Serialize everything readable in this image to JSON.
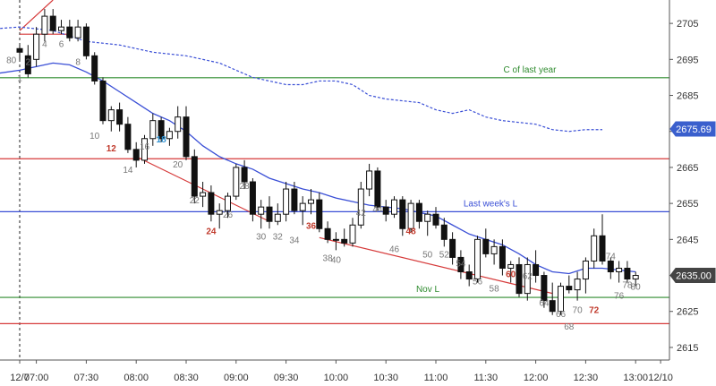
{
  "chart_data": {
    "type": "candlestick",
    "y_ticks": [
      2705,
      2695,
      2685,
      2675,
      2665,
      2655,
      2645,
      2635,
      2625,
      2615
    ],
    "ylim": [
      2611.5,
      2711.5
    ],
    "x_ticks": [
      {
        "bar": 0,
        "label": "12/7"
      },
      {
        "bar": 2,
        "label": "07:00"
      },
      {
        "bar": 8,
        "label": "07:30"
      },
      {
        "bar": 14,
        "label": "08:00"
      },
      {
        "bar": 20,
        "label": "08:30"
      },
      {
        "bar": 26,
        "label": "09:00"
      },
      {
        "bar": 32,
        "label": "09:30"
      },
      {
        "bar": 38,
        "label": "10:00"
      },
      {
        "bar": 44,
        "label": "10:30"
      },
      {
        "bar": 50,
        "label": "11:00"
      },
      {
        "bar": 56,
        "label": "11:30"
      },
      {
        "bar": 62,
        "label": "12:00"
      },
      {
        "bar": 68,
        "label": "12:30"
      },
      {
        "bar": 74,
        "label": "13:00"
      },
      {
        "bar": 77,
        "label": "12/10"
      }
    ],
    "day_separator_bar": 0,
    "price_readouts": [
      {
        "value": 2675.69,
        "text": "2675.69",
        "color": "#3a5fcd"
      },
      {
        "value": 2635.0,
        "text": "2635.00",
        "color": "#444444"
      }
    ],
    "levels": [
      {
        "value": 2689.9,
        "color": "#2e8b2e",
        "label": "C of last year"
      },
      {
        "value": 2667.4,
        "color": "#d63a3a",
        "label": ""
      },
      {
        "value": 2652.7,
        "color": "#3a4fd6",
        "label": "Last week's L"
      },
      {
        "value": 2628.9,
        "color": "#2e8b2e",
        "label": "Nov L"
      },
      {
        "value": 2621.6,
        "color": "#d63a3a",
        "label": ""
      }
    ],
    "trend_lines": [
      {
        "points": [
          [
            0,
            2703
          ],
          [
            4,
            2711.5
          ]
        ],
        "color": "#d63a3a"
      },
      {
        "points": [
          [
            0,
            2702
          ],
          [
            6,
            2702
          ]
        ],
        "color": "#d63a3a"
      },
      {
        "points": [
          [
            14,
            2668
          ],
          [
            30,
            2650
          ]
        ],
        "color": "#d63a3a"
      },
      {
        "points": [
          [
            36,
            2645.5
          ],
          [
            64,
            2630
          ]
        ],
        "color": "#d63a3a"
      }
    ],
    "candles": [
      [
        2698,
        2699,
        2695,
        2697
      ],
      [
        2696,
        2699,
        2690,
        2691
      ],
      [
        2695,
        2704,
        2693,
        2702
      ],
      [
        2702,
        2709,
        2700,
        2707
      ],
      [
        2707,
        2709,
        2702,
        2703
      ],
      [
        2703,
        2706,
        2702,
        2704
      ],
      [
        2704,
        2706,
        2700,
        2701
      ],
      [
        2701,
        2706,
        2700,
        2704
      ],
      [
        2704,
        2705,
        2695,
        2696
      ],
      [
        2696,
        2697,
        2688,
        2689
      ],
      [
        2689,
        2690,
        2677,
        2678
      ],
      [
        2678,
        2682,
        2675,
        2681
      ],
      [
        2681,
        2683,
        2675,
        2677
      ],
      [
        2677,
        2679,
        2669,
        2670
      ],
      [
        2670,
        2672,
        2665,
        2667
      ],
      [
        2667,
        2674,
        2666,
        2673
      ],
      [
        2673,
        2680,
        2671,
        2678
      ],
      [
        2678,
        2679,
        2672,
        2673
      ],
      [
        2673,
        2676,
        2671,
        2675
      ],
      [
        2675,
        2682,
        2673,
        2679
      ],
      [
        2679,
        2682,
        2667,
        2668
      ],
      [
        2668,
        2670,
        2655,
        2657
      ],
      [
        2657,
        2661,
        2654,
        2658
      ],
      [
        2658,
        2660,
        2650,
        2652
      ],
      [
        2652,
        2655,
        2648,
        2653
      ],
      [
        2653,
        2658,
        2651,
        2657
      ],
      [
        2657,
        2666,
        2656,
        2665
      ],
      [
        2665,
        2667,
        2659,
        2661
      ],
      [
        2661,
        2662,
        2650,
        2652
      ],
      [
        2652,
        2656,
        2648,
        2654
      ],
      [
        2654,
        2657,
        2648,
        2650
      ],
      [
        2650,
        2655,
        2649,
        2652
      ],
      [
        2652,
        2661,
        2650,
        2659
      ],
      [
        2659,
        2661,
        2652,
        2653
      ],
      [
        2653,
        2657,
        2649,
        2655
      ],
      [
        2655,
        2659,
        2652,
        2656
      ],
      [
        2656,
        2658,
        2647,
        2648
      ],
      [
        2648,
        2650,
        2644,
        2645
      ],
      [
        2645,
        2647,
        2642,
        2645
      ],
      [
        2645,
        2648,
        2643,
        2644
      ],
      [
        2644,
        2651,
        2643,
        2649
      ],
      [
        2649,
        2661,
        2648,
        2659
      ],
      [
        2659,
        2666,
        2657,
        2664
      ],
      [
        2664,
        2665,
        2653,
        2654
      ],
      [
        2654,
        2656,
        2650,
        2652
      ],
      [
        2652,
        2657,
        2651,
        2656
      ],
      [
        2656,
        2657,
        2646,
        2648
      ],
      [
        2648,
        2656,
        2647,
        2655
      ],
      [
        2655,
        2656,
        2648,
        2650
      ],
      [
        2650,
        2653,
        2646,
        2652
      ],
      [
        2652,
        2654,
        2648,
        2649
      ],
      [
        2649,
        2651,
        2643,
        2645
      ],
      [
        2645,
        2647,
        2638,
        2640
      ],
      [
        2640,
        2642,
        2634,
        2636
      ],
      [
        2636,
        2638,
        2632,
        2634
      ],
      [
        2634,
        2646,
        2633,
        2645
      ],
      [
        2645,
        2648,
        2640,
        2641
      ],
      [
        2641,
        2645,
        2638,
        2643
      ],
      [
        2643,
        2645,
        2635,
        2637
      ],
      [
        2637,
        2639,
        2633,
        2638
      ],
      [
        2638,
        2640,
        2629,
        2630
      ],
      [
        2630,
        2640,
        2628,
        2638
      ],
      [
        2638,
        2642,
        2633,
        2635
      ],
      [
        2635,
        2636,
        2626,
        2628
      ],
      [
        2628,
        2633,
        2624,
        2625
      ],
      [
        2625,
        2633,
        2624,
        2632
      ],
      [
        2632,
        2635,
        2630,
        2631
      ],
      [
        2631,
        2636,
        2628,
        2634
      ],
      [
        2634,
        2640,
        2630,
        2639
      ],
      [
        2639,
        2648,
        2637,
        2646
      ],
      [
        2646,
        2652,
        2638,
        2639
      ],
      [
        2639,
        2640,
        2634,
        2636
      ],
      [
        2636,
        2639,
        2633,
        2637
      ],
      [
        2637,
        2639,
        2633,
        2634
      ],
      [
        2634,
        2636,
        2632,
        2635
      ]
    ],
    "ema_color": "#3a4fd6",
    "ema_points": [
      [
        -12,
        2680
      ],
      [
        -6,
        2690
      ],
      [
        0,
        2692
      ],
      [
        2,
        2693
      ],
      [
        4,
        2694
      ],
      [
        6,
        2693.5
      ],
      [
        8,
        2691.5
      ],
      [
        10,
        2689
      ],
      [
        12,
        2686
      ],
      [
        14,
        2683
      ],
      [
        16,
        2680
      ],
      [
        18,
        2678
      ],
      [
        20,
        2675
      ],
      [
        22,
        2671
      ],
      [
        24,
        2668
      ],
      [
        26,
        2666
      ],
      [
        28,
        2664.5
      ],
      [
        30,
        2662
      ],
      [
        32,
        2660.5
      ],
      [
        34,
        2659
      ],
      [
        36,
        2658
      ],
      [
        38,
        2656.5
      ],
      [
        40,
        2655.5
      ],
      [
        42,
        2654.5
      ],
      [
        44,
        2654
      ],
      [
        46,
        2653.5
      ],
      [
        48,
        2652.5
      ],
      [
        50,
        2651.5
      ],
      [
        52,
        2649
      ],
      [
        54,
        2646.5
      ],
      [
        56,
        2645
      ],
      [
        58,
        2643.5
      ],
      [
        60,
        2641
      ],
      [
        62,
        2638
      ],
      [
        64,
        2636
      ],
      [
        66,
        2635.5
      ],
      [
        68,
        2637
      ],
      [
        70,
        2637
      ],
      [
        72,
        2636.5
      ],
      [
        74,
        2636
      ]
    ],
    "dotted_color": "#3a4fd6",
    "dotted_points": [
      [
        -12,
        2702
      ],
      [
        0,
        2704
      ],
      [
        4,
        2703
      ],
      [
        8,
        2700
      ],
      [
        12,
        2699
      ],
      [
        16,
        2697
      ],
      [
        20,
        2696
      ],
      [
        24,
        2694
      ],
      [
        26,
        2692
      ],
      [
        28,
        2690
      ],
      [
        30,
        2689
      ],
      [
        32,
        2688
      ],
      [
        34,
        2688
      ],
      [
        36,
        2689
      ],
      [
        38,
        2689
      ],
      [
        40,
        2688
      ],
      [
        42,
        2685
      ],
      [
        44,
        2684
      ],
      [
        46,
        2683.5
      ],
      [
        48,
        2683
      ],
      [
        50,
        2681
      ],
      [
        52,
        2680
      ],
      [
        54,
        2681
      ],
      [
        56,
        2679
      ],
      [
        58,
        2678
      ],
      [
        60,
        2677.5
      ],
      [
        62,
        2677
      ],
      [
        64,
        2675.5
      ],
      [
        66,
        2675
      ],
      [
        68,
        2675.5
      ],
      [
        70,
        2675.5
      ]
    ],
    "bar_labels": [
      {
        "text": "80",
        "bar": -1,
        "y": 2694,
        "color": "#777777"
      },
      {
        "text": "1",
        "bar": 0,
        "y": 2689,
        "color": "#777777"
      },
      {
        "text": "2",
        "bar": 1,
        "y": 2693.5,
        "color": "#777777"
      },
      {
        "text": "4",
        "bar": 3,
        "y": 2698.5,
        "color": "#777777"
      },
      {
        "text": "6",
        "bar": 5,
        "y": 2698.5,
        "color": "#777777"
      },
      {
        "text": "8",
        "bar": 7,
        "y": 2693.5,
        "color": "#777777"
      },
      {
        "text": "10",
        "bar": 9,
        "y": 2673,
        "color": "#777777"
      },
      {
        "text": "12",
        "bar": 11,
        "y": 2669.5,
        "color": "#c0392b"
      },
      {
        "text": "14",
        "bar": 13,
        "y": 2663.5,
        "color": "#777777"
      },
      {
        "text": "16",
        "bar": 15,
        "y": 2670,
        "color": "#777777"
      },
      {
        "text": "18",
        "bar": 17,
        "y": 2672,
        "color": "#2a8fd0"
      },
      {
        "text": "20",
        "bar": 19,
        "y": 2665,
        "color": "#777777"
      },
      {
        "text": "22",
        "bar": 21,
        "y": 2655,
        "color": "#777777"
      },
      {
        "text": "24",
        "bar": 23,
        "y": 2646.5,
        "color": "#c0392b"
      },
      {
        "text": "26",
        "bar": 25,
        "y": 2651,
        "color": "#777777"
      },
      {
        "text": "28",
        "bar": 27,
        "y": 2659,
        "color": "#777777"
      },
      {
        "text": "30",
        "bar": 29,
        "y": 2645,
        "color": "#777777"
      },
      {
        "text": "32",
        "bar": 31,
        "y": 2645,
        "color": "#777777"
      },
      {
        "text": "34",
        "bar": 33,
        "y": 2644,
        "color": "#777777"
      },
      {
        "text": "36",
        "bar": 35,
        "y": 2648,
        "color": "#c0392b"
      },
      {
        "text": "38",
        "bar": 37,
        "y": 2639,
        "color": "#777777"
      },
      {
        "text": "40",
        "bar": 38,
        "y": 2638.5,
        "color": "#777777"
      },
      {
        "text": "42",
        "bar": 41,
        "y": 2651.5,
        "color": "#777777"
      },
      {
        "text": "44",
        "bar": 43,
        "y": 2652.5,
        "color": "#777777"
      },
      {
        "text": "46",
        "bar": 45,
        "y": 2641.5,
        "color": "#777777"
      },
      {
        "text": "48",
        "bar": 47,
        "y": 2646.5,
        "color": "#c0392b"
      },
      {
        "text": "50",
        "bar": 49,
        "y": 2640,
        "color": "#777777"
      },
      {
        "text": "52",
        "bar": 51,
        "y": 2640,
        "color": "#777777"
      },
      {
        "text": "54",
        "bar": 53,
        "y": 2637.5,
        "color": "#777777"
      },
      {
        "text": "56",
        "bar": 55,
        "y": 2632.5,
        "color": "#777777"
      },
      {
        "text": "58",
        "bar": 57,
        "y": 2630.5,
        "color": "#777777"
      },
      {
        "text": "60",
        "bar": 59,
        "y": 2634.5,
        "color": "#c0392b"
      },
      {
        "text": "62",
        "bar": 61,
        "y": 2634,
        "color": "#777777"
      },
      {
        "text": "64",
        "bar": 63,
        "y": 2626.5,
        "color": "#777777"
      },
      {
        "text": "66",
        "bar": 65,
        "y": 2623.5,
        "color": "#777777"
      },
      {
        "text": "68",
        "bar": 66,
        "y": 2620,
        "color": "#777777"
      },
      {
        "text": "70",
        "bar": 67,
        "y": 2624.5,
        "color": "#777777"
      },
      {
        "text": "72",
        "bar": 69,
        "y": 2624.5,
        "color": "#c0392b"
      },
      {
        "text": "74",
        "bar": 71,
        "y": 2639.5,
        "color": "#777777"
      },
      {
        "text": "76",
        "bar": 72,
        "y": 2628.5,
        "color": "#777777"
      },
      {
        "text": "78",
        "bar": 73,
        "y": 2631.5,
        "color": "#777777"
      },
      {
        "text": "80",
        "bar": 74,
        "y": 2631,
        "color": "#777777"
      }
    ]
  }
}
